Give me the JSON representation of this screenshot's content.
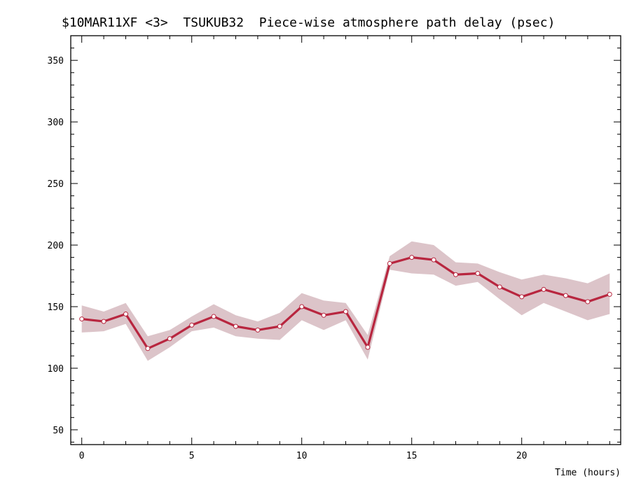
{
  "chart_data": {
    "type": "line",
    "title": "$10MAR11XF <3>  TSUKUB32  Piece-wise atmosphere path delay (psec)",
    "xlabel": "Time (hours)",
    "ylabel": "",
    "xlim": [
      -0.5,
      24.5
    ],
    "ylim": [
      38,
      370
    ],
    "x_ticks": [
      0,
      5,
      10,
      15,
      20
    ],
    "y_ticks": [
      50,
      100,
      150,
      200,
      250,
      300,
      350
    ],
    "x_tick_labels": [
      "0",
      "5",
      "10",
      "15",
      "20"
    ],
    "y_tick_labels": [
      "50",
      "100",
      "150",
      "200",
      "250",
      "300",
      "350"
    ],
    "grid": false,
    "legend": "none",
    "series": [
      {
        "x": [
          0,
          1,
          2,
          3,
          4,
          5,
          6,
          7,
          8,
          9,
          10,
          11,
          12,
          13,
          14,
          15,
          16,
          17,
          18,
          19,
          20,
          21,
          22,
          23,
          24
        ],
        "values": [
          140,
          138,
          144,
          116,
          124,
          135,
          142,
          134,
          131,
          134,
          150,
          143,
          146,
          117,
          185,
          190,
          188,
          176,
          177,
          166,
          158,
          164,
          159,
          154,
          160
        ],
        "upper": [
          151,
          146,
          153,
          126,
          131,
          142,
          152,
          143,
          138,
          145,
          161,
          155,
          153,
          127,
          191,
          203,
          200,
          186,
          185,
          178,
          172,
          176,
          173,
          169,
          177
        ],
        "lower": [
          129,
          130,
          136,
          106,
          117,
          130,
          133,
          126,
          124,
          123,
          139,
          131,
          139,
          107,
          180,
          177,
          176,
          167,
          170,
          156,
          143,
          153,
          146,
          139,
          144
        ]
      }
    ],
    "colors": {
      "line": "#b8263f",
      "band": "#dcc4c9",
      "marker_fill": "#ffffff"
    }
  }
}
